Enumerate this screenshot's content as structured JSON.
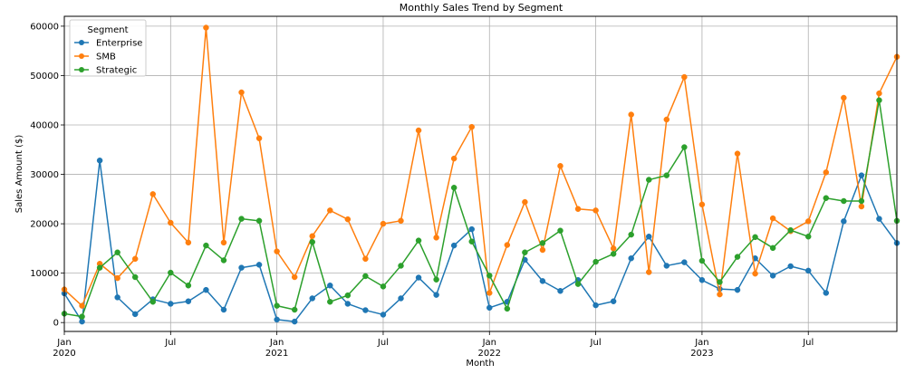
{
  "chart_data": {
    "type": "line",
    "title": "Monthly Sales Trend by Segment",
    "xlabel": "Month",
    "ylabel": "Sales Amount ($)",
    "ylim": [
      -1800,
      62000
    ],
    "grid": true,
    "legend": {
      "title": "Segment",
      "placement": "top-left"
    },
    "x": [
      "2020-01",
      "2020-02",
      "2020-03",
      "2020-04",
      "2020-05",
      "2020-06",
      "2020-07",
      "2020-08",
      "2020-09",
      "2020-10",
      "2020-11",
      "2020-12",
      "2021-01",
      "2021-02",
      "2021-03",
      "2021-04",
      "2021-05",
      "2021-06",
      "2021-07",
      "2021-08",
      "2021-09",
      "2021-10",
      "2021-11",
      "2021-12",
      "2022-01",
      "2022-02",
      "2022-03",
      "2022-04",
      "2022-05",
      "2022-06",
      "2022-07",
      "2022-08",
      "2022-09",
      "2022-10",
      "2022-11",
      "2022-12",
      "2023-01",
      "2023-02",
      "2023-03",
      "2023-04",
      "2023-05",
      "2023-06",
      "2023-07",
      "2023-08",
      "2023-09",
      "2023-10",
      "2023-11",
      "2023-12"
    ],
    "x_ticks": [
      {
        "index": 0,
        "label": "Jan",
        "year": "2020"
      },
      {
        "index": 6,
        "label": "Jul",
        "year": ""
      },
      {
        "index": 12,
        "label": "Jan",
        "year": "2021"
      },
      {
        "index": 18,
        "label": "Jul",
        "year": ""
      },
      {
        "index": 24,
        "label": "Jan",
        "year": "2022"
      },
      {
        "index": 30,
        "label": "Jul",
        "year": ""
      },
      {
        "index": 36,
        "label": "Jan",
        "year": "2023"
      },
      {
        "index": 42,
        "label": "Jul",
        "year": ""
      }
    ],
    "y_ticks": [
      0,
      10000,
      20000,
      30000,
      40000,
      50000,
      60000
    ],
    "series": [
      {
        "name": "Enterprise",
        "color": "#1f77b4",
        "values": [
          5900,
          200,
          32800,
          5100,
          1700,
          4700,
          3800,
          4300,
          6600,
          2600,
          11100,
          11700,
          600,
          200,
          4900,
          7500,
          3800,
          2500,
          1600,
          4900,
          9100,
          5600,
          15600,
          18900,
          3000,
          4200,
          12700,
          8400,
          6400,
          8600,
          3500,
          4300,
          13000,
          17400,
          11500,
          12200,
          8600,
          6800,
          6600,
          13000,
          9500,
          11400,
          10500,
          6000,
          20500,
          29800,
          21000,
          16100
        ]
      },
      {
        "name": "SMB",
        "color": "#ff7f0e",
        "values": [
          6700,
          3400,
          11900,
          9000,
          12900,
          26000,
          20200,
          16200,
          59700,
          16200,
          46600,
          37300,
          14400,
          9200,
          17500,
          22700,
          20900,
          12900,
          20000,
          20600,
          38900,
          17200,
          33200,
          39600,
          6000,
          15700,
          24400,
          14700,
          31700,
          23000,
          22700,
          15000,
          42100,
          10200,
          41100,
          49700,
          23900,
          5700,
          34200,
          9900,
          21100,
          18500,
          20500,
          30400,
          45500,
          23500,
          46400,
          53800
        ]
      },
      {
        "name": "Strategic",
        "color": "#2ca02c",
        "values": [
          1800,
          1200,
          11100,
          14200,
          9200,
          4200,
          10100,
          7500,
          15600,
          12600,
          21000,
          20600,
          3400,
          2600,
          16300,
          4200,
          5500,
          9400,
          7300,
          11500,
          16600,
          8700,
          27300,
          16400,
          9500,
          2800,
          14200,
          16100,
          18600,
          7800,
          12300,
          13900,
          17800,
          28900,
          29800,
          35500,
          12500,
          8200,
          13300,
          17300,
          15100,
          18700,
          17400,
          25200,
          24600,
          24600,
          45000,
          20600
        ]
      }
    ]
  }
}
